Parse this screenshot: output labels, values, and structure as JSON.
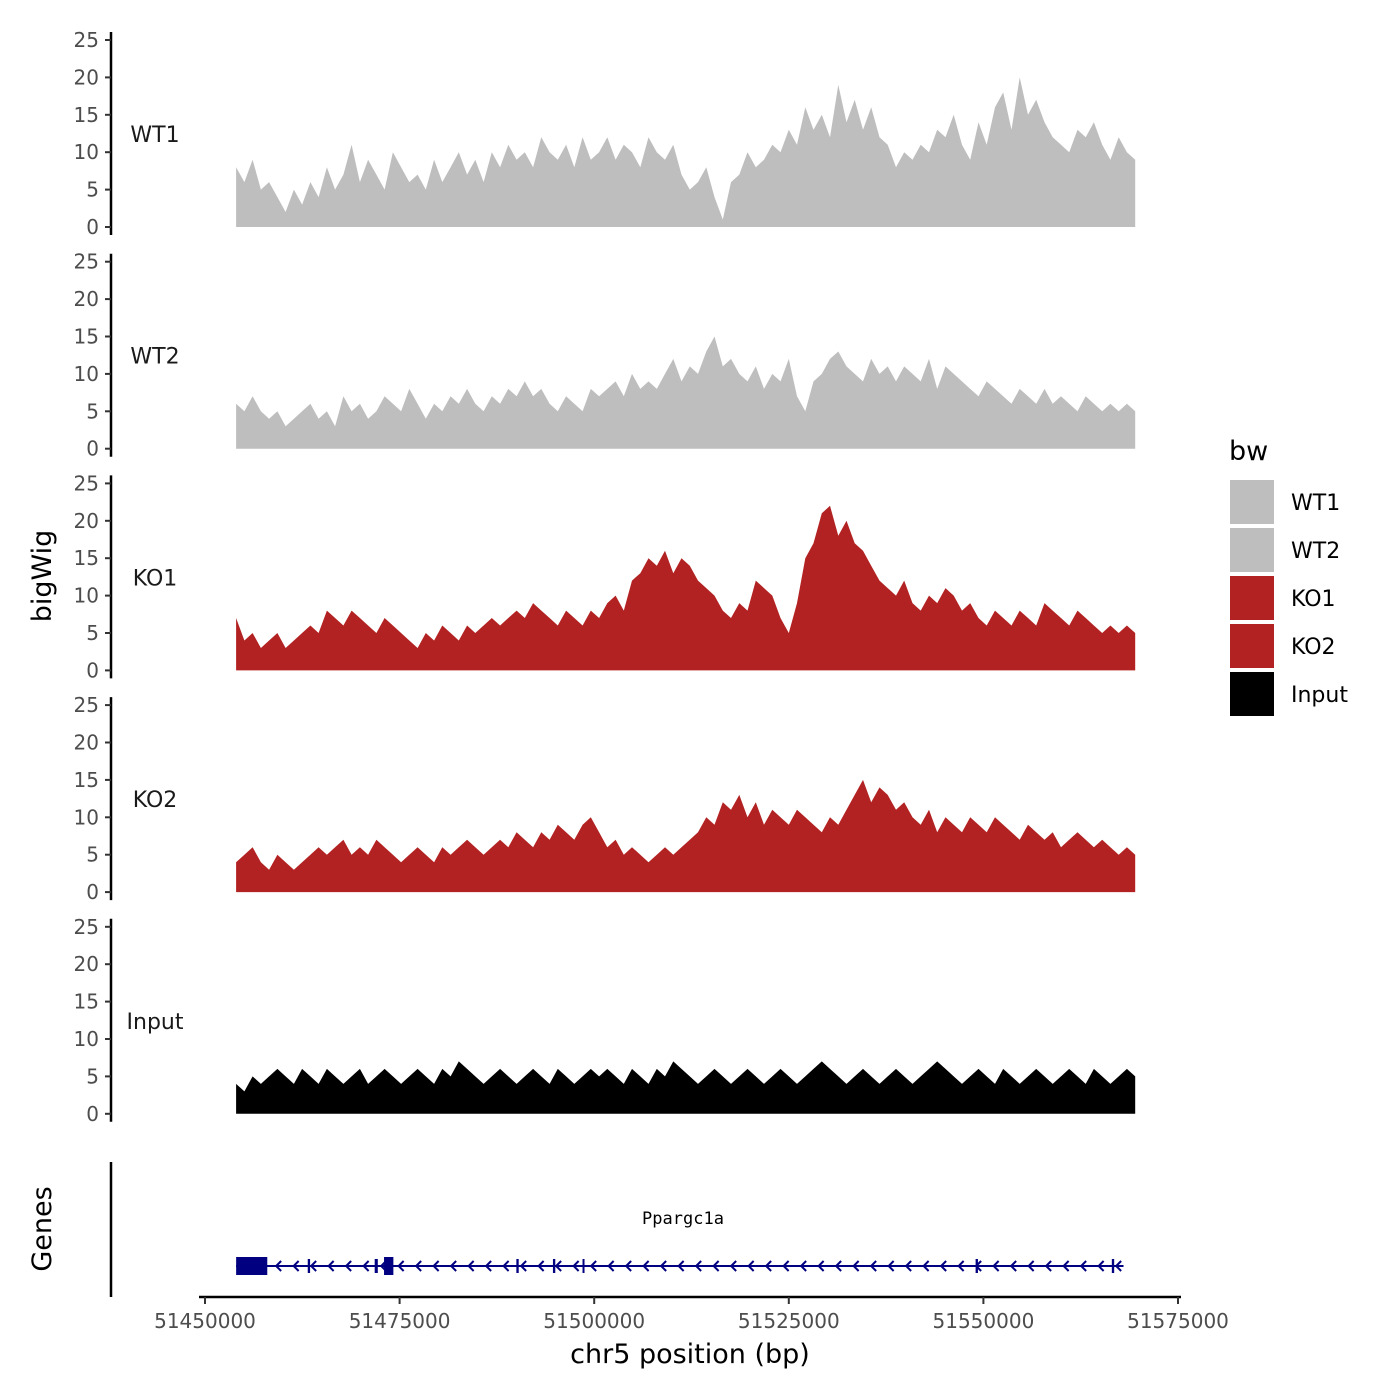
{
  "chart_data": {
    "type": "area",
    "chromosome": "chr5",
    "xlabel": "chr5 position (bp)",
    "ylabel": "bigWig",
    "genes_label": "Genes",
    "xlim": [
      51450000,
      51575000
    ],
    "x_ticks": [
      51450000,
      51475000,
      51500000,
      51525000,
      51550000,
      51575000
    ],
    "x_tick_labels": [
      "51450000",
      "51475000",
      "51500000",
      "51525000",
      "51550000",
      "51575000"
    ],
    "ylim": [
      0,
      25
    ],
    "y_ticks": [
      0,
      5,
      10,
      15,
      20,
      25
    ],
    "y_tick_labels": [
      "0",
      "5",
      "10",
      "15",
      "20",
      "25"
    ],
    "legend": {
      "title": "bw",
      "entries": [
        {
          "label": "WT1",
          "color": "#bebebe"
        },
        {
          "label": "WT2",
          "color": "#bebebe"
        },
        {
          "label": "KO1",
          "color": "#b22222"
        },
        {
          "label": "KO2",
          "color": "#b22222"
        },
        {
          "label": "Input",
          "color": "#000000"
        }
      ]
    },
    "series": [
      {
        "name": "WT1",
        "color": "#bebebe",
        "x_start": 51454000,
        "x_end": 51569500,
        "values": [
          8,
          6,
          9,
          5,
          6,
          4,
          2,
          5,
          3,
          6,
          4,
          8,
          5,
          7,
          11,
          6,
          9,
          7,
          5,
          10,
          8,
          6,
          7,
          5,
          9,
          6,
          8,
          10,
          7,
          9,
          6,
          10,
          8,
          11,
          9,
          10,
          8,
          12,
          10,
          9,
          11,
          8,
          12,
          9,
          10,
          12,
          9,
          11,
          10,
          8,
          12,
          10,
          9,
          11,
          7,
          5,
          6,
          8,
          4,
          1,
          6,
          7,
          10,
          8,
          9,
          11,
          10,
          13,
          11,
          16,
          13,
          15,
          12,
          19,
          14,
          17,
          13,
          16,
          12,
          11,
          8,
          10,
          9,
          11,
          10,
          13,
          12,
          15,
          11,
          9,
          14,
          11,
          16,
          18,
          13,
          20,
          15,
          17,
          14,
          12,
          11,
          10,
          13,
          12,
          14,
          11,
          9,
          12,
          10,
          9
        ]
      },
      {
        "name": "WT2",
        "color": "#bebebe",
        "x_start": 51454000,
        "x_end": 51569500,
        "values": [
          6,
          5,
          7,
          5,
          4,
          5,
          3,
          4,
          5,
          6,
          4,
          5,
          3,
          7,
          5,
          6,
          4,
          5,
          7,
          6,
          5,
          8,
          6,
          4,
          6,
          5,
          7,
          6,
          8,
          6,
          5,
          7,
          6,
          8,
          7,
          9,
          7,
          8,
          6,
          5,
          7,
          6,
          5,
          8,
          7,
          8,
          9,
          7,
          10,
          8,
          9,
          8,
          10,
          12,
          9,
          11,
          10,
          13,
          15,
          11,
          12,
          10,
          9,
          11,
          8,
          10,
          9,
          12,
          7,
          5,
          9,
          10,
          12,
          13,
          11,
          10,
          9,
          12,
          10,
          11,
          9,
          11,
          10,
          9,
          12,
          8,
          11,
          10,
          9,
          8,
          7,
          9,
          8,
          7,
          6,
          8,
          7,
          6,
          8,
          6,
          7,
          6,
          5,
          7,
          6,
          5,
          6,
          5,
          6,
          5
        ]
      },
      {
        "name": "KO1",
        "color": "#b22222",
        "x_start": 51454000,
        "x_end": 51569500,
        "values": [
          7,
          4,
          5,
          3,
          4,
          5,
          3,
          4,
          5,
          6,
          5,
          8,
          7,
          6,
          8,
          7,
          6,
          5,
          7,
          6,
          5,
          4,
          3,
          5,
          4,
          6,
          5,
          4,
          6,
          5,
          6,
          7,
          6,
          7,
          8,
          7,
          9,
          8,
          7,
          6,
          8,
          7,
          6,
          8,
          7,
          9,
          10,
          8,
          12,
          13,
          15,
          14,
          16,
          13,
          15,
          14,
          12,
          11,
          10,
          8,
          7,
          9,
          8,
          12,
          11,
          10,
          7,
          5,
          9,
          15,
          17,
          21,
          22,
          18,
          20,
          17,
          16,
          14,
          12,
          11,
          10,
          12,
          9,
          8,
          10,
          9,
          11,
          10,
          8,
          9,
          7,
          6,
          8,
          7,
          6,
          8,
          7,
          6,
          9,
          8,
          7,
          6,
          8,
          7,
          6,
          5,
          6,
          5,
          6,
          5
        ]
      },
      {
        "name": "KO2",
        "color": "#b22222",
        "x_start": 51454000,
        "x_end": 51569500,
        "values": [
          4,
          5,
          6,
          4,
          3,
          5,
          4,
          3,
          4,
          5,
          6,
          5,
          6,
          7,
          5,
          6,
          5,
          7,
          6,
          5,
          4,
          5,
          6,
          5,
          4,
          6,
          5,
          6,
          7,
          6,
          5,
          6,
          7,
          6,
          8,
          7,
          6,
          8,
          7,
          9,
          8,
          7,
          9,
          10,
          8,
          6,
          7,
          5,
          6,
          5,
          4,
          5,
          6,
          5,
          6,
          7,
          8,
          10,
          9,
          12,
          11,
          13,
          10,
          12,
          9,
          11,
          10,
          9,
          11,
          10,
          9,
          8,
          10,
          9,
          11,
          13,
          15,
          12,
          14,
          13,
          11,
          12,
          10,
          9,
          11,
          8,
          10,
          9,
          8,
          10,
          9,
          8,
          10,
          9,
          8,
          7,
          9,
          8,
          7,
          8,
          6,
          7,
          8,
          7,
          6,
          7,
          6,
          5,
          6,
          5
        ]
      },
      {
        "name": "Input",
        "color": "#000000",
        "x_start": 51454000,
        "x_end": 51569500,
        "values": [
          4,
          3,
          5,
          4,
          5,
          6,
          5,
          4,
          6,
          5,
          4,
          6,
          5,
          4,
          5,
          6,
          4,
          5,
          6,
          5,
          4,
          5,
          6,
          5,
          4,
          6,
          5,
          7,
          6,
          5,
          4,
          5,
          6,
          5,
          4,
          5,
          6,
          5,
          4,
          6,
          5,
          4,
          5,
          6,
          5,
          6,
          5,
          4,
          6,
          5,
          4,
          6,
          5,
          7,
          6,
          5,
          4,
          5,
          6,
          5,
          4,
          5,
          6,
          5,
          4,
          5,
          6,
          5,
          4,
          5,
          6,
          7,
          6,
          5,
          4,
          5,
          6,
          5,
          4,
          5,
          6,
          5,
          4,
          5,
          6,
          7,
          6,
          5,
          4,
          5,
          6,
          5,
          4,
          6,
          5,
          4,
          5,
          6,
          5,
          4,
          5,
          6,
          5,
          4,
          6,
          5,
          4,
          5,
          6,
          5
        ]
      }
    ],
    "genes": [
      {
        "name": "Ppargc1a",
        "strand": "-",
        "start": 51454000,
        "end": 51568000,
        "exons": [
          [
            51454000,
            51458000
          ],
          [
            51463200,
            51463500
          ],
          [
            51471800,
            51472200
          ],
          [
            51473000,
            51474200
          ],
          [
            51490000,
            51490300
          ],
          [
            51494700,
            51495000
          ],
          [
            51498500,
            51498700
          ],
          [
            51549000,
            51549300
          ],
          [
            51566500,
            51566800
          ]
        ]
      }
    ]
  }
}
